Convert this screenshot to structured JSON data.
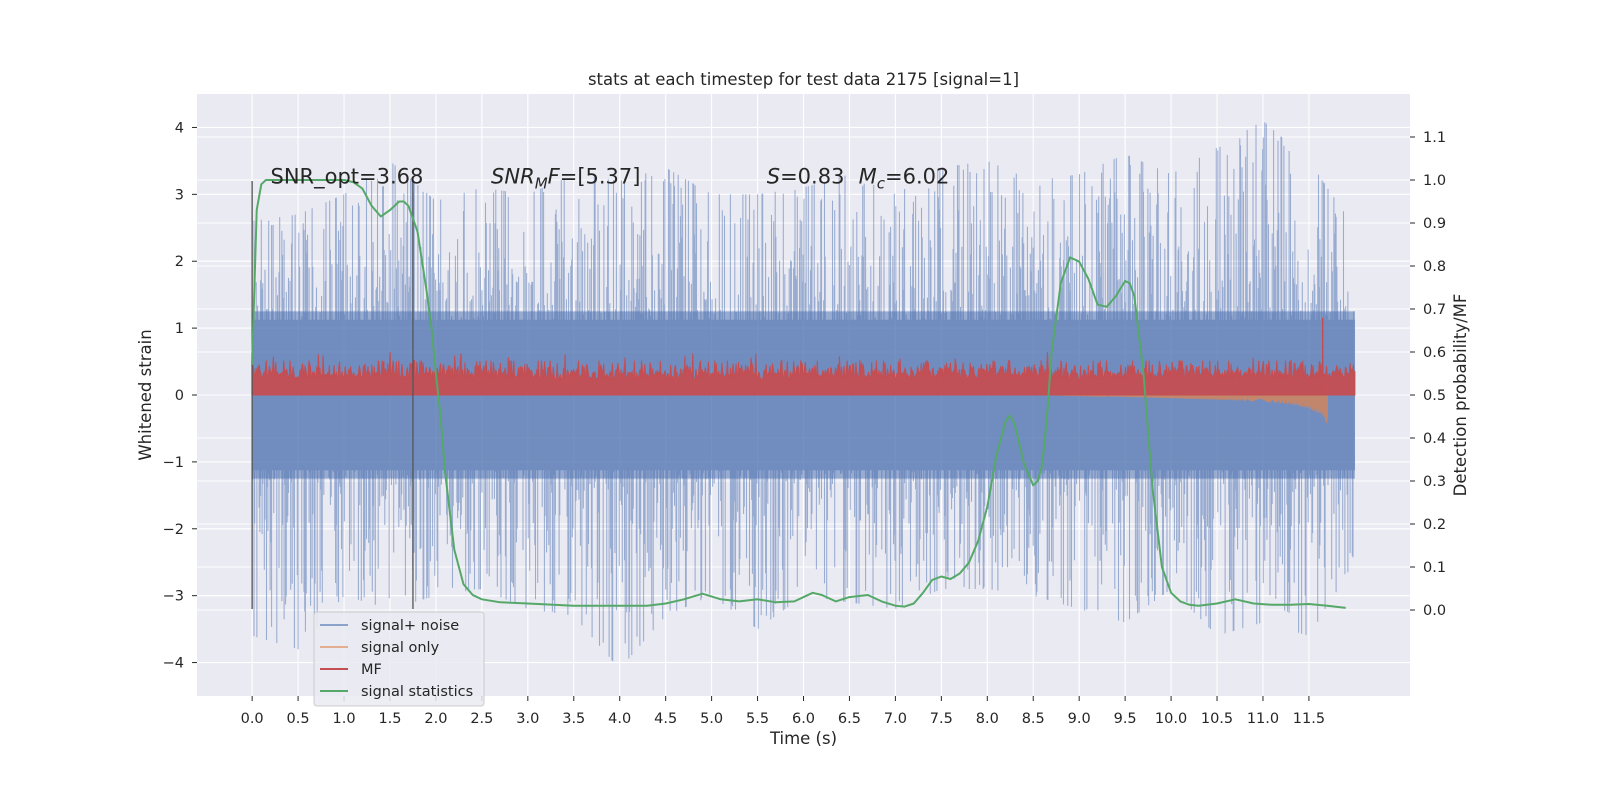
{
  "chart_data": {
    "type": "line",
    "title": "stats at each timestep for test data 2175 [signal=1]",
    "xlabel": "Time (s)",
    "ylabel": "Whitened strain",
    "y2label": "Detection probability/MF",
    "xlim": [
      -0.6,
      12.6
    ],
    "ylim": [
      -4.5,
      4.5
    ],
    "y2lim": [
      -0.2,
      1.2
    ],
    "x_ticks": [
      "0.0",
      "0.5",
      "1.0",
      "1.5",
      "2.0",
      "2.5",
      "3.0",
      "3.5",
      "4.0",
      "4.5",
      "5.0",
      "5.5",
      "6.0",
      "6.5",
      "7.0",
      "7.5",
      "8.0",
      "8.5",
      "9.0",
      "9.5",
      "10.0",
      "10.5",
      "11.0",
      "11.5"
    ],
    "y_ticks": [
      "−4",
      "−3",
      "−2",
      "−1",
      "0",
      "1",
      "2",
      "3",
      "4"
    ],
    "y2_ticks": [
      "0.0",
      "0.1",
      "0.2",
      "0.3",
      "0.4",
      "0.5",
      "0.6",
      "0.7",
      "0.8",
      "0.9",
      "1.0",
      "1.1"
    ],
    "grid": true,
    "legend_position": "bottom-left",
    "annotations": [
      {
        "label": "SNR_opt=3.68",
        "x": 0.2,
        "y": 3.25
      },
      {
        "label": "SNR",
        "sub": "M",
        "tail": "F=[5.37]",
        "x": 2.6,
        "y": 3.25
      },
      {
        "label": "S=0.83",
        "x": 5.6,
        "y": 3.25
      },
      {
        "label": "M",
        "sub": "c",
        "tail": "=6.02",
        "x": 6.6,
        "y": 3.25
      }
    ],
    "vertical_lines": [
      {
        "x": 0.0,
        "ymin": -3.2,
        "ymax": 3.2
      },
      {
        "x": 1.75,
        "ymin": -3.2,
        "ymax": 3.2
      }
    ],
    "series": [
      {
        "name": "signal+ noise",
        "color": "#4c72b0",
        "kind": "noise",
        "x_range": [
          0.0,
          12.0
        ],
        "typical_amplitude": 1.25,
        "envelope_points": {
          "t": [
            0.0,
            0.5,
            1.0,
            1.5,
            2.0,
            2.5,
            3.0,
            3.5,
            4.0,
            4.5,
            5.0,
            5.5,
            6.0,
            6.5,
            7.0,
            7.5,
            8.0,
            8.5,
            9.0,
            9.5,
            10.0,
            10.5,
            11.0,
            11.5,
            12.0
          ],
          "upper": [
            2.6,
            2.7,
            3.0,
            3.5,
            2.9,
            3.1,
            3.0,
            3.3,
            3.2,
            3.4,
            3.0,
            3.0,
            3.1,
            3.3,
            3.0,
            3.4,
            3.5,
            3.2,
            3.3,
            3.6,
            3.3,
            3.7,
            4.1,
            3.5,
            2.5
          ],
          "lower": [
            -3.6,
            -3.8,
            -3.0,
            -3.2,
            -3.0,
            -2.9,
            -3.2,
            -3.3,
            -4.1,
            -3.3,
            -3.0,
            -3.5,
            -3.0,
            -3.1,
            -3.2,
            -2.9,
            -2.9,
            -3.0,
            -3.2,
            -3.4,
            -2.9,
            -3.6,
            -3.4,
            -3.6,
            -2.5
          ]
        }
      },
      {
        "name": "signal only",
        "color": "#dd8452",
        "kind": "chirp",
        "x": [
          0.0,
          8.5,
          9.0,
          9.5,
          10.0,
          10.5,
          11.0,
          11.3,
          11.5,
          11.65,
          11.7
        ],
        "values": [
          0.0,
          0.0,
          -0.02,
          -0.03,
          -0.05,
          -0.07,
          -0.1,
          -0.14,
          -0.2,
          -0.3,
          -0.45
        ]
      },
      {
        "name": "MF",
        "color": "#c44e52",
        "kind": "band",
        "x_range": [
          0.0,
          12.0
        ],
        "base": 0.5,
        "typical_max": 0.58,
        "spikes": [
          {
            "x": 0.0,
            "value": 0.6
          },
          {
            "x": 11.65,
            "value": 0.68
          }
        ]
      },
      {
        "name": "signal statistics",
        "color": "#55a868",
        "kind": "line",
        "x": [
          0.0,
          0.05,
          0.1,
          0.15,
          0.2,
          0.3,
          0.4,
          0.6,
          0.8,
          1.0,
          1.1,
          1.2,
          1.3,
          1.4,
          1.5,
          1.6,
          1.65,
          1.7,
          1.8,
          1.9,
          1.95,
          2.0,
          2.05,
          2.1,
          2.2,
          2.3,
          2.4,
          2.5,
          2.7,
          3.0,
          3.5,
          4.0,
          4.3,
          4.5,
          4.7,
          4.9,
          5.1,
          5.3,
          5.5,
          5.7,
          5.9,
          6.1,
          6.2,
          6.35,
          6.5,
          6.7,
          6.85,
          7.0,
          7.1,
          7.2,
          7.3,
          7.4,
          7.5,
          7.6,
          7.7,
          7.8,
          7.9,
          8.0,
          8.1,
          8.2,
          8.25,
          8.3,
          8.4,
          8.5,
          8.55,
          8.6,
          8.65,
          8.7,
          8.8,
          8.9,
          9.0,
          9.1,
          9.2,
          9.3,
          9.4,
          9.5,
          9.55,
          9.6,
          9.7,
          9.8,
          9.9,
          10.0,
          10.1,
          10.2,
          10.3,
          10.5,
          10.7,
          10.9,
          11.1,
          11.3,
          11.5,
          11.7,
          11.9
        ],
        "values": [
          0.57,
          0.93,
          0.99,
          1.0,
          1.0,
          1.0,
          1.0,
          1.0,
          1.0,
          1.0,
          0.995,
          0.98,
          0.94,
          0.915,
          0.93,
          0.95,
          0.95,
          0.94,
          0.88,
          0.74,
          0.66,
          0.55,
          0.45,
          0.32,
          0.14,
          0.06,
          0.035,
          0.025,
          0.018,
          0.015,
          0.01,
          0.01,
          0.01,
          0.015,
          0.025,
          0.038,
          0.025,
          0.02,
          0.025,
          0.018,
          0.02,
          0.04,
          0.035,
          0.02,
          0.03,
          0.035,
          0.02,
          0.01,
          0.008,
          0.015,
          0.04,
          0.07,
          0.078,
          0.072,
          0.085,
          0.11,
          0.16,
          0.24,
          0.36,
          0.44,
          0.452,
          0.43,
          0.34,
          0.29,
          0.3,
          0.34,
          0.45,
          0.6,
          0.76,
          0.82,
          0.81,
          0.77,
          0.71,
          0.705,
          0.73,
          0.765,
          0.76,
          0.73,
          0.55,
          0.28,
          0.1,
          0.04,
          0.02,
          0.012,
          0.01,
          0.015,
          0.025,
          0.015,
          0.012,
          0.012,
          0.014,
          0.01,
          0.005
        ]
      }
    ]
  }
}
